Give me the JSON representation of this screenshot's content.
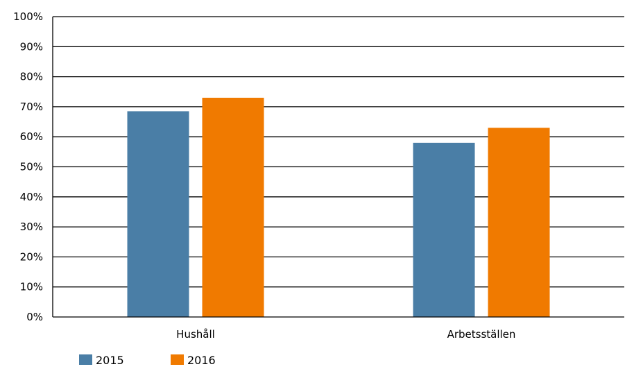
{
  "chart_data": {
    "type": "bar",
    "title": "",
    "xlabel": "",
    "ylabel": "",
    "categories": [
      "Hushåll",
      "Arbetsställen"
    ],
    "series": [
      {
        "name": "2015",
        "values": [
          68.5,
          58
        ],
        "color": "#4a7ea6"
      },
      {
        "name": "2016",
        "values": [
          73,
          63
        ],
        "color": "#f07a00"
      }
    ],
    "ylim": [
      0,
      100
    ],
    "yticks": [
      0,
      10,
      20,
      30,
      40,
      50,
      60,
      70,
      80,
      90,
      100
    ],
    "ytick_labels": [
      "0%",
      "10%",
      "20%",
      "30%",
      "40%",
      "50%",
      "60%",
      "70%",
      "80%",
      "90%",
      "100%"
    ],
    "grid": true,
    "legend_position": "bottom-left"
  }
}
